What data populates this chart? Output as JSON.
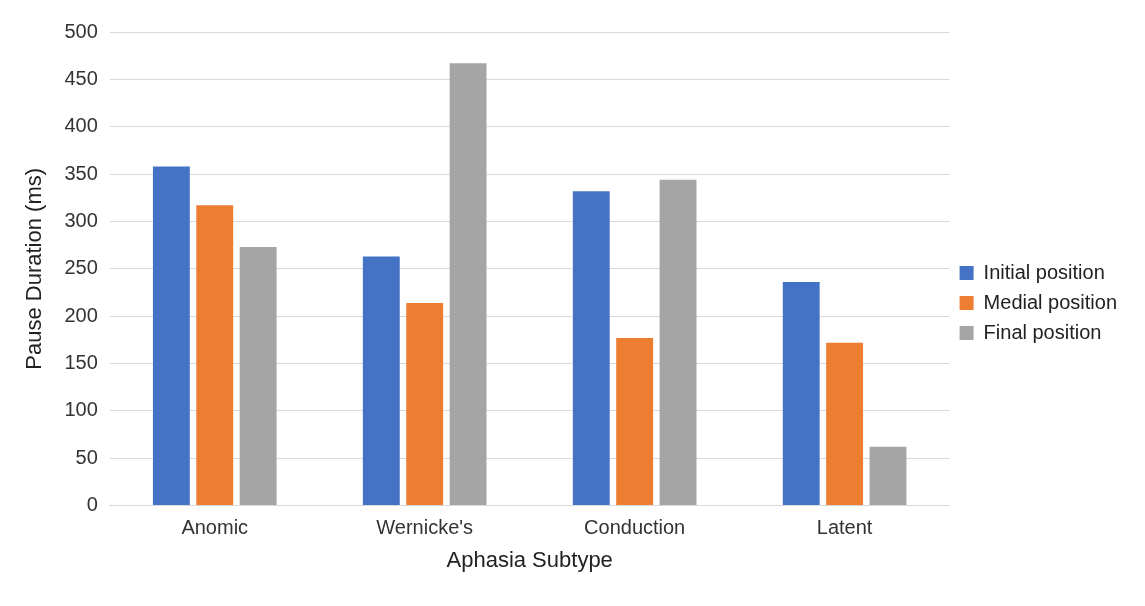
{
  "chart_data": {
    "type": "bar",
    "xlabel": "Aphasia Subtype",
    "ylabel": "Pause Duration (ms)",
    "categories": [
      "Anomic",
      "Wernicke's",
      "Conduction",
      "Latent"
    ],
    "series": [
      {
        "name": "Initial position",
        "color": "#4472c4",
        "values": [
          358,
          263,
          332,
          236
        ]
      },
      {
        "name": "Medial position",
        "color": "#ed7d31",
        "values": [
          317,
          214,
          177,
          172
        ]
      },
      {
        "name": "Final position",
        "color": "#a5a5a5",
        "values": [
          273,
          467,
          344,
          62
        ]
      }
    ],
    "ylim": [
      0,
      500
    ],
    "yticks": [
      0,
      50,
      100,
      150,
      200,
      250,
      300,
      350,
      400,
      450,
      500
    ],
    "grid": "y",
    "legend": "right"
  }
}
